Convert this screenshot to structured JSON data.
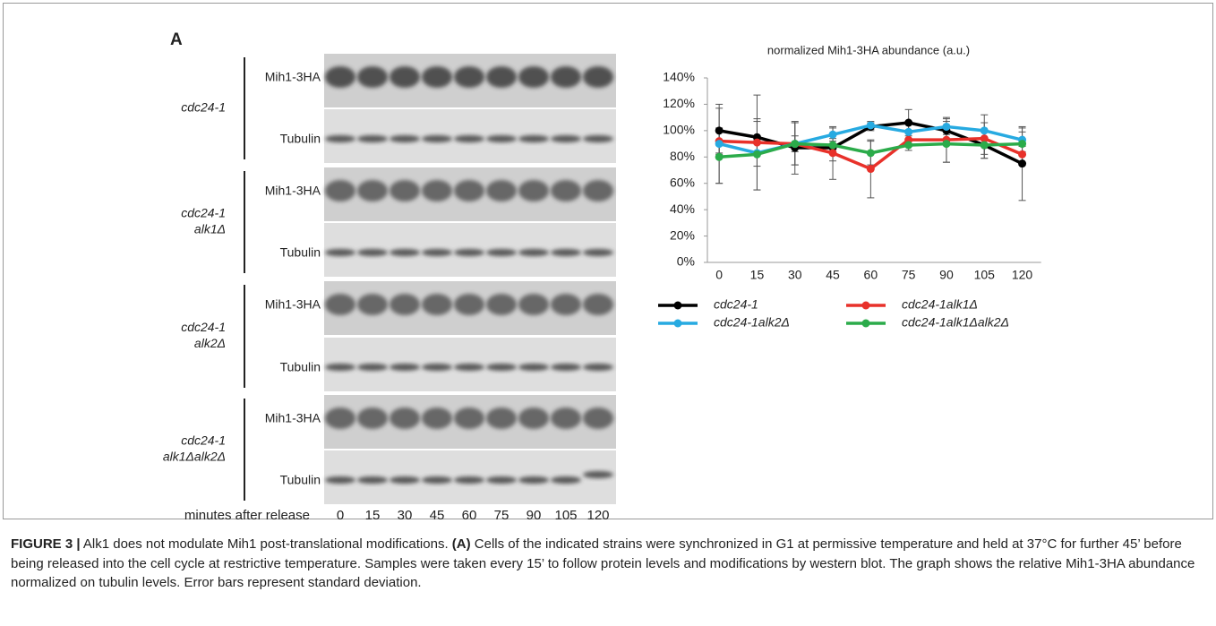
{
  "figure": {
    "panel": "A",
    "blot": {
      "strains": [
        [
          "cdc24-1"
        ],
        [
          "cdc24-1",
          "alk1Δ"
        ],
        [
          "cdc24-1",
          "alk2Δ"
        ],
        [
          "cdc24-1",
          "alk1Δalk2Δ"
        ]
      ],
      "panels": [
        [
          "Mih1-3HA",
          "Tubulin"
        ],
        [
          "Mih1-3HA",
          "Tubulin"
        ],
        [
          "Mih1-3HA",
          "Tubulin"
        ],
        [
          "Mih1-3HA",
          "Tubulin"
        ]
      ],
      "lane_axis_label": "minutes after release",
      "lanes": [
        "0",
        "15",
        "30",
        "45",
        "60",
        "75",
        "90",
        "105",
        "120"
      ]
    }
  },
  "chart_data": {
    "type": "line",
    "title": "normalized Mih1-3HA abundance (a.u.)",
    "categories": [
      "0",
      "15",
      "30",
      "45",
      "60",
      "75",
      "90",
      "105",
      "120"
    ],
    "series": [
      {
        "name": "cdc24-1",
        "color": "#000000",
        "values": [
          100,
          95,
          87,
          87,
          103,
          106,
          100,
          89,
          75
        ],
        "errors": [
          17,
          12,
          20,
          10,
          3,
          10,
          7,
          10,
          28
        ]
      },
      {
        "name": "cdc24-1alk1Δ",
        "color": "#e8312a",
        "values": [
          92,
          91,
          90,
          83,
          71,
          93,
          93,
          94,
          82
        ],
        "errors": [
          10,
          36,
          16,
          20,
          22,
          5,
          17,
          12,
          6
        ]
      },
      {
        "name": "cdc24-1alk2Δ",
        "color": "#27aae1",
        "values": [
          90,
          83,
          90,
          97,
          104,
          99,
          103,
          100,
          93
        ],
        "errors": [
          30,
          10,
          6,
          5,
          3,
          6,
          6,
          12,
          9
        ]
      },
      {
        "name": "cdc24-1alk1Δalk2Δ",
        "color": "#2bab4a",
        "values": [
          80,
          82,
          90,
          89,
          83,
          89,
          90,
          89,
          90
        ],
        "errors": [
          20,
          27,
          16,
          5,
          9,
          4,
          14,
          10,
          9
        ]
      }
    ],
    "ylim": [
      0,
      140
    ],
    "yticks": [
      {
        "value": 0,
        "label": "0%"
      },
      {
        "value": 20,
        "label": "20%"
      },
      {
        "value": 40,
        "label": "40%"
      },
      {
        "value": 60,
        "label": "60%"
      },
      {
        "value": 80,
        "label": "80%"
      },
      {
        "value": 100,
        "label": "100%"
      },
      {
        "value": 120,
        "label": "120%"
      },
      {
        "value": 140,
        "label": "140%"
      }
    ],
    "grid": false,
    "legend": "bottom"
  },
  "caption": {
    "label": "FIGURE 3 |",
    "title": "Alk1 does not modulate Mih1 post-translational modifications.",
    "panel": "(A)",
    "body": "Cells of the indicated strains were synchronized in G1 at permissive temperature and held at 37°C for further 45’ before being released into the cell cycle at restrictive temperature. Samples were taken every 15’ to follow protein levels and modifications by western blot. The graph shows the relative Mih1-3HA abundance normalized on tubulin levels. Error bars represent standard deviation."
  }
}
